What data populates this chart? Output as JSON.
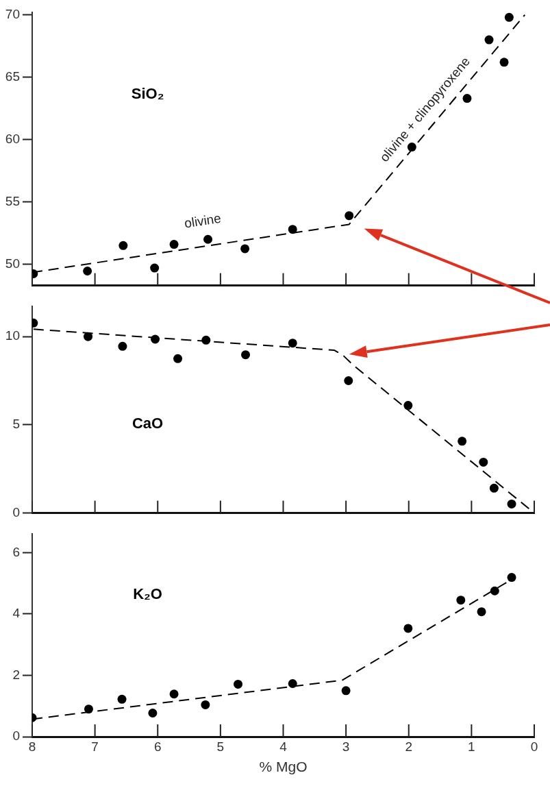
{
  "chart_data": [
    {
      "type": "scatter",
      "title": "SiO₂",
      "xlim": [
        8,
        0
      ],
      "xticks": [
        8,
        7,
        6,
        5,
        4,
        3,
        2,
        1,
        0
      ],
      "ylim": [
        48.3,
        70.2
      ],
      "yticks": [
        50,
        55,
        60,
        65,
        70
      ],
      "tick_labels": "y",
      "series": [
        {
          "marker": "circle",
          "color": "#000000",
          "x": [
            7.98,
            7.12,
            6.55,
            6.05,
            5.74,
            5.2,
            4.61,
            3.85,
            2.95,
            1.95,
            1.07,
            0.72,
            0.48,
            0.4
          ],
          "values": [
            49.24,
            49.46,
            51.5,
            49.7,
            51.6,
            52.0,
            51.25,
            52.8,
            53.9,
            59.4,
            63.3,
            68.0,
            66.2,
            69.8
          ]
        },
        {
          "type": "line",
          "marker": "none",
          "line_style": "dashed",
          "color": "#000000",
          "x": [
            8,
            2.95,
            0.15
          ],
          "values": [
            49.35,
            53.2,
            70.0
          ]
        }
      ],
      "annotations": [
        "olivine",
        "olivine + clinopyroxene"
      ]
    },
    {
      "type": "scatter",
      "title": "CaO",
      "xlim": [
        8,
        0
      ],
      "xticks": [
        8,
        7,
        6,
        5,
        4,
        3,
        2,
        1,
        0
      ],
      "ylim": [
        0,
        11.7
      ],
      "yticks": [
        0,
        5,
        10
      ],
      "tick_labels": "y",
      "series": [
        {
          "marker": "circle",
          "color": "#000000",
          "x": [
            7.98,
            7.11,
            6.56,
            6.04,
            5.68,
            5.23,
            4.6,
            3.85,
            2.96,
            2.01,
            1.15,
            0.81,
            0.64,
            0.36
          ],
          "values": [
            10.77,
            10.0,
            9.45,
            9.85,
            8.75,
            9.8,
            8.97,
            9.63,
            7.5,
            6.1,
            4.07,
            2.88,
            1.41,
            0.51
          ]
        },
        {
          "type": "line",
          "marker": "none",
          "line_style": "dashed",
          "color": "#000000",
          "x": [
            7.98,
            3.19,
            3.05,
            2.89,
            0
          ],
          "values": [
            10.42,
            9.23,
            8.95,
            8.4,
            0
          ]
        }
      ]
    },
    {
      "type": "scatter",
      "title": "K₂O",
      "xlabel": "% MgO",
      "xlim": [
        8,
        0
      ],
      "xticks": [
        8,
        7,
        6,
        5,
        4,
        3,
        2,
        1,
        0
      ],
      "ylim": [
        0,
        6.6
      ],
      "yticks": [
        0,
        2,
        4,
        6
      ],
      "series": [
        {
          "marker": "circle",
          "color": "#000000",
          "x": [
            8.0,
            7.1,
            6.57,
            6.08,
            5.74,
            5.24,
            4.72,
            3.85,
            3.0,
            2.01,
            1.17,
            0.84,
            0.63,
            0.36
          ],
          "values": [
            0.62,
            0.9,
            1.22,
            0.77,
            1.39,
            1.04,
            1.71,
            1.73,
            1.5,
            3.53,
            4.45,
            4.07,
            4.75,
            5.19
          ]
        },
        {
          "type": "line",
          "marker": "none",
          "line_style": "dashed",
          "color": "#000000",
          "x": [
            8,
            3.06,
            0.38
          ],
          "values": [
            0.57,
            1.84,
            5.1
          ]
        }
      ]
    }
  ]
}
